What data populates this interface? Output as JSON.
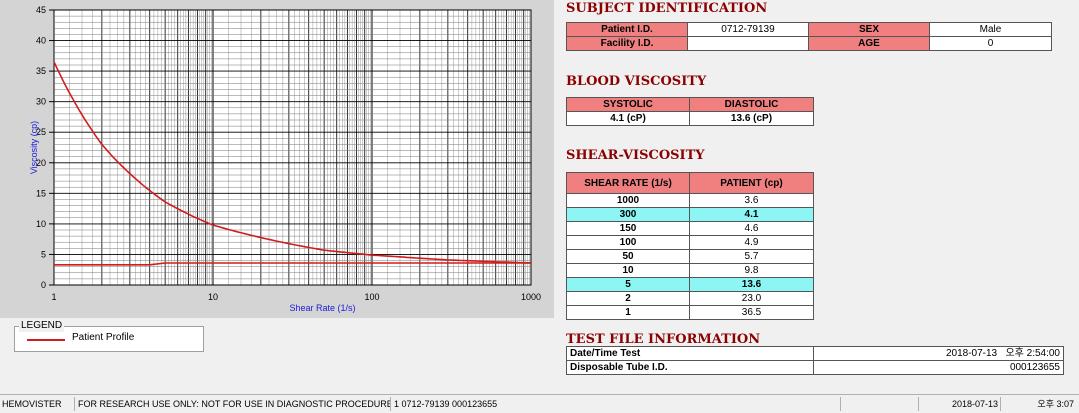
{
  "chart_data": {
    "type": "line",
    "xscale": "log",
    "xlim": [
      1,
      1000
    ],
    "ylim": [
      0,
      45
    ],
    "xlabel": "Shear Rate (1/s)",
    "ylabel": "Viscosity (cp)",
    "xticks": [
      "1",
      "10",
      "100",
      "1000"
    ],
    "yticks": [
      "0",
      "5",
      "10",
      "15",
      "20",
      "25",
      "30",
      "35",
      "40",
      "45"
    ],
    "grid": true,
    "series": [
      {
        "name": "Patient Profile",
        "color": "#d21c1c",
        "x": [
          1,
          2,
          5,
          10,
          50,
          100,
          150,
          300,
          1000
        ],
        "y": [
          36.5,
          23.0,
          13.6,
          9.8,
          5.7,
          4.9,
          4.6,
          4.1,
          3.6
        ]
      },
      {
        "color": "#d21c1c",
        "x": [
          1,
          4,
          5,
          1000
        ],
        "y": [
          3.3,
          3.3,
          3.6,
          3.6
        ]
      }
    ]
  },
  "legend": {
    "title": "LEGEND",
    "item": "Patient Profile"
  },
  "subject": {
    "title": "SUBJECT IDENTIFICATION",
    "patient_id_label": "Patient I.D.",
    "patient_id": "0712-79139",
    "sex_label": "SEX",
    "sex": "Male",
    "facility_label": "Facility I.D.",
    "facility": "",
    "age_label": "AGE",
    "age": "0"
  },
  "blood": {
    "title": "BLOOD VISCOSITY",
    "systolic_label": "SYSTOLIC",
    "diastolic_label": "DIASTOLIC",
    "systolic": "4.1 (cP)",
    "diastolic": "13.6 (cP)"
  },
  "shear": {
    "title": "SHEAR-VISCOSITY",
    "col1": "SHEAR RATE (1/s)",
    "col2": "PATIENT (cp)",
    "rows": [
      {
        "rate": "1000",
        "val": "3.6"
      },
      {
        "rate": "300",
        "val": "4.1"
      },
      {
        "rate": "150",
        "val": "4.6"
      },
      {
        "rate": "100",
        "val": "4.9"
      },
      {
        "rate": "50",
        "val": "5.7"
      },
      {
        "rate": "10",
        "val": "9.8"
      },
      {
        "rate": "5",
        "val": "13.6"
      },
      {
        "rate": "2",
        "val": "23.0"
      },
      {
        "rate": "1",
        "val": "36.5"
      }
    ]
  },
  "testfile": {
    "title": "TEST FILE INFORMATION",
    "datetime_label": "Date/Time Test",
    "datetime": "2018-07-13   오후 2:54:00",
    "tube_label": "Disposable Tube I.D.",
    "tube": "000123655"
  },
  "status": {
    "app": "HEMOVISTER",
    "notice": "FOR RESEARCH USE ONLY: NOT FOR USE IN DIAGNOSTIC PROCEDURES",
    "record": "1  0712-79139  000123655",
    "date": "2018-07-13",
    "time": "오후 3:07"
  }
}
